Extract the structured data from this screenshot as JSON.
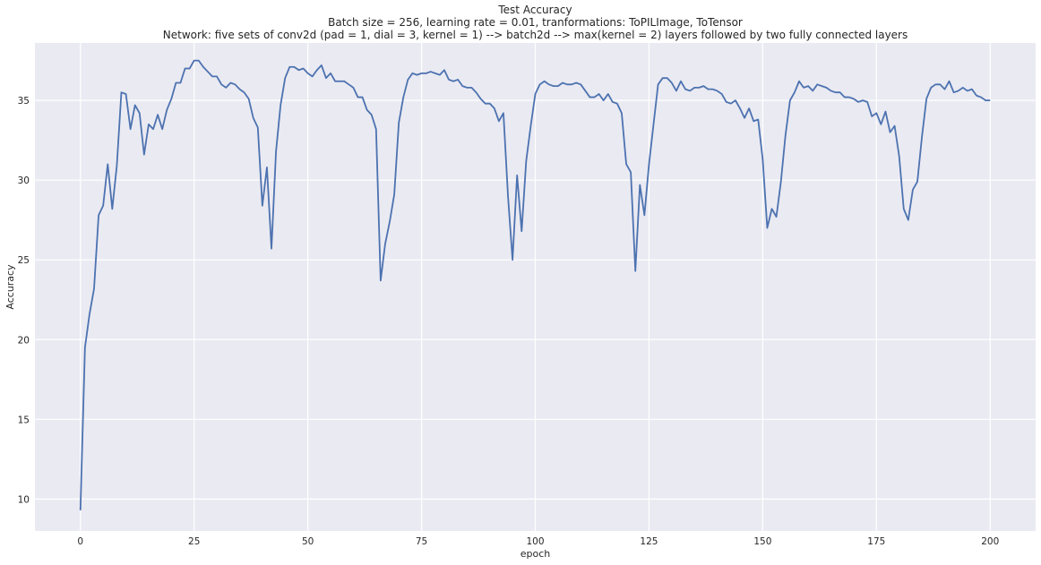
{
  "chart_data": {
    "type": "line",
    "title": "Test Accuracy",
    "subtitle_lines": [
      "Batch size = 256, learning rate = 0.01, tranformations: ToPILImage, ToTensor",
      "Network: five sets of conv2d (pad = 1, dial = 3, kernel = 1) --> batch2d --> max(kernel = 2) layers followed by two fully connected layers"
    ],
    "xlabel": "epoch",
    "ylabel": "Accuracy",
    "xlim": [
      -10,
      210
    ],
    "ylim": [
      8,
      38.6
    ],
    "xticks": [
      0,
      25,
      50,
      75,
      100,
      125,
      150,
      175,
      200
    ],
    "yticks": [
      10,
      15,
      20,
      25,
      30,
      35
    ],
    "grid": true,
    "line_color": "#4c72b0",
    "background_color": "#eaeaf2",
    "series": [
      {
        "values": [
          9.3,
          19.5,
          21.6,
          23.2,
          27.8,
          28.4,
          31.0,
          28.2,
          30.9,
          35.5,
          35.4,
          33.2,
          34.7,
          34.2,
          31.6,
          33.5,
          33.2,
          34.1,
          33.2,
          34.4,
          35.1,
          36.1,
          36.1,
          37.0,
          37.0,
          37.5,
          37.5,
          37.1,
          36.8,
          36.5,
          36.5,
          36.0,
          35.8,
          36.1,
          36.0,
          35.7,
          35.5,
          35.1,
          33.9,
          33.3,
          28.4,
          30.8,
          25.7,
          31.8,
          34.7,
          36.4,
          37.1,
          37.1,
          36.9,
          37.0,
          36.7,
          36.5,
          36.9,
          37.2,
          36.4,
          36.7,
          36.2,
          36.2,
          36.2,
          36.0,
          35.8,
          35.2,
          35.2,
          34.4,
          34.1,
          33.2,
          23.7,
          26.0,
          27.4,
          29.1,
          33.6,
          35.2,
          36.3,
          36.7,
          36.6,
          36.7,
          36.7,
          36.8,
          36.7,
          36.6,
          36.9,
          36.3,
          36.2,
          36.3,
          35.9,
          35.8,
          35.8,
          35.5,
          35.1,
          34.8,
          34.8,
          34.5,
          33.7,
          34.2,
          29.0,
          25.0,
          30.3,
          26.8,
          31.2,
          33.4,
          35.4,
          36.0,
          36.2,
          36.0,
          35.9,
          35.9,
          36.1,
          36.0,
          36.0,
          36.1,
          36.0,
          35.6,
          35.2,
          35.2,
          35.4,
          35.0,
          35.4,
          34.9,
          34.8,
          34.2,
          31.0,
          30.5,
          24.3,
          29.7,
          27.8,
          31.0,
          33.5,
          36.0,
          36.4,
          36.4,
          36.1,
          35.6,
          36.2,
          35.7,
          35.6,
          35.8,
          35.8,
          35.9,
          35.7,
          35.7,
          35.6,
          35.4,
          34.9,
          34.8,
          35.0,
          34.5,
          33.9,
          34.5,
          33.7,
          33.8,
          31.3,
          27.0,
          28.2,
          27.7,
          29.9,
          32.8,
          35.0,
          35.5,
          36.2,
          35.8,
          35.9,
          35.6,
          36.0,
          35.9,
          35.8,
          35.6,
          35.5,
          35.5,
          35.2,
          35.2,
          35.1,
          34.9,
          35.0,
          34.9,
          34.0,
          34.2,
          33.5,
          34.3,
          33.0,
          33.4,
          31.5,
          28.2,
          27.5,
          29.4,
          29.9,
          32.7,
          35.1,
          35.8,
          36.0,
          36.0,
          35.7,
          36.2,
          35.5,
          35.6,
          35.8,
          35.6,
          35.7,
          35.3,
          35.2,
          35.0,
          35.0
        ]
      }
    ]
  }
}
